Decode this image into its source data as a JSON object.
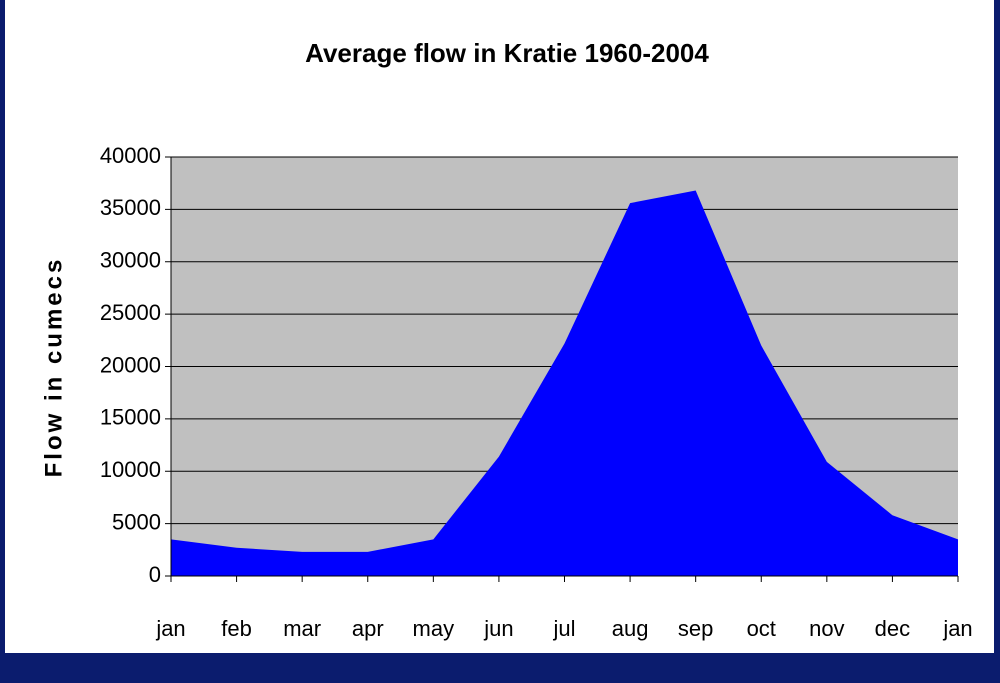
{
  "chart_data": {
    "type": "area",
    "title": "Average flow in Kratie 1960-2004",
    "y_label": "Flow in cumecs",
    "categories": [
      "jan",
      "feb",
      "mar",
      "apr",
      "may",
      "jun",
      "jul",
      "aug",
      "sep",
      "oct",
      "nov",
      "dec",
      "jan"
    ],
    "values": [
      3500,
      2700,
      2300,
      2300,
      3500,
      11400,
      22200,
      35600,
      36800,
      22000,
      10900,
      5800,
      3500
    ],
    "color": "#0000ff",
    "plot_background": "#c0c0c0",
    "ylim": [
      0,
      40000
    ],
    "yticks": [
      0,
      5000,
      10000,
      15000,
      20000,
      25000,
      30000,
      35000,
      40000
    ],
    "grid": true
  }
}
